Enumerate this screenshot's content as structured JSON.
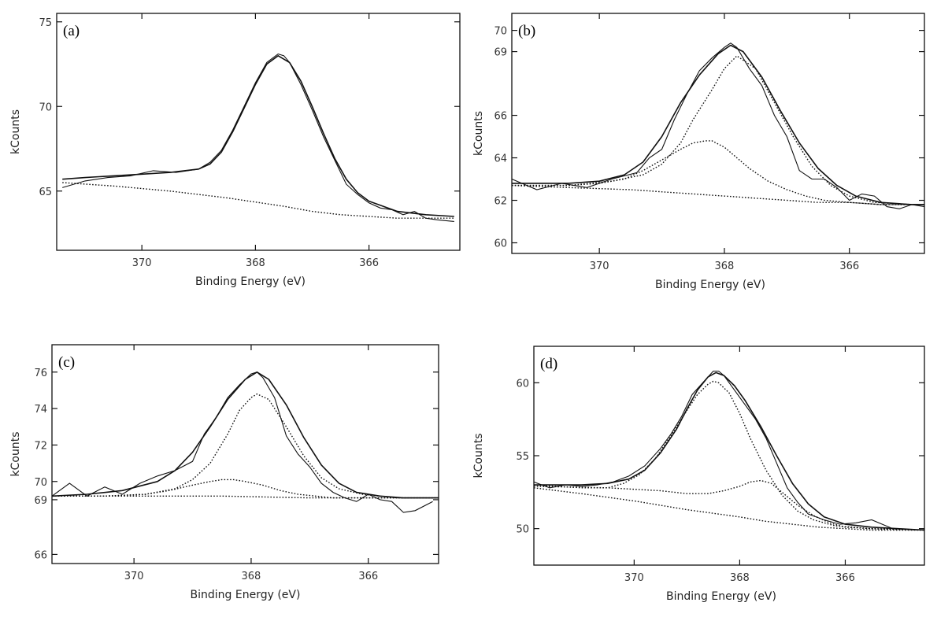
{
  "chart_data": [
    {
      "type": "line",
      "panel_label": "(a)",
      "xlabel": "Binding Energy (eV)",
      "ylabel": "kCounts",
      "x_reversed": true,
      "xlim": [
        371.5,
        364.4
      ],
      "ylim": [
        61.5,
        75.5
      ],
      "xticks": [
        370,
        368,
        366
      ],
      "xtick_labels": [
        "370",
        "368",
        "366"
      ],
      "yticks": [
        65,
        70,
        75
      ],
      "ytick_labels": [
        "65",
        "70",
        "75"
      ],
      "raw": {
        "x": [
          371.4,
          371.0,
          370.6,
          370.2,
          369.8,
          369.4,
          369.0,
          368.8,
          368.6,
          368.4,
          368.2,
          368.0,
          367.8,
          367.6,
          367.5,
          367.4,
          367.2,
          367.0,
          366.8,
          366.6,
          366.4,
          366.2,
          366.0,
          365.8,
          365.6,
          365.4,
          365.2,
          365.0,
          364.8,
          364.5
        ],
        "y": [
          65.2,
          65.6,
          65.8,
          65.9,
          66.2,
          66.1,
          66.3,
          66.7,
          67.4,
          68.6,
          70.0,
          71.4,
          72.6,
          73.1,
          73.0,
          72.6,
          71.3,
          69.8,
          68.2,
          66.8,
          65.4,
          64.8,
          64.3,
          64.0,
          63.9,
          63.6,
          63.8,
          63.4,
          63.3,
          63.2
        ]
      },
      "series": [
        {
          "style": "solid",
          "x": [
            371.4,
            371.0,
            370.5,
            370.0,
            369.5,
            369.0,
            368.8,
            368.6,
            368.4,
            368.2,
            368.0,
            367.8,
            367.6,
            367.4,
            367.2,
            367.0,
            366.8,
            366.6,
            366.4,
            366.2,
            366.0,
            365.5,
            365.0,
            364.5
          ],
          "y": [
            65.7,
            65.8,
            65.9,
            66.0,
            66.1,
            66.3,
            66.6,
            67.3,
            68.5,
            69.9,
            71.3,
            72.5,
            73.0,
            72.6,
            71.5,
            70.0,
            68.4,
            66.9,
            65.7,
            64.9,
            64.4,
            63.8,
            63.6,
            63.5
          ]
        },
        {
          "style": "dotted",
          "x": [
            371.4,
            370.5,
            369.5,
            368.5,
            367.5,
            367.0,
            366.5,
            366.0,
            365.5,
            365.0,
            364.5
          ],
          "y": [
            65.5,
            65.3,
            65.0,
            64.6,
            64.1,
            63.8,
            63.6,
            63.5,
            63.4,
            63.4,
            63.4
          ]
        }
      ]
    },
    {
      "type": "line",
      "panel_label": "(b)",
      "xlabel": "Binding Energy (eV)",
      "ylabel": "kCounts",
      "x_reversed": true,
      "xlim": [
        371.4,
        364.8
      ],
      "ylim": [
        59.5,
        70.8
      ],
      "xticks": [
        370,
        368,
        366
      ],
      "xtick_labels": [
        "370",
        "368",
        "366"
      ],
      "yticks": [
        60,
        62,
        64,
        66,
        69,
        70
      ],
      "ytick_labels": [
        "60",
        "62",
        "64",
        "66",
        "69",
        "70"
      ],
      "raw": {
        "x": [
          371.4,
          371.0,
          370.6,
          370.2,
          369.8,
          369.4,
          369.2,
          369.0,
          368.8,
          368.6,
          368.4,
          368.2,
          368.0,
          367.9,
          367.8,
          367.6,
          367.4,
          367.2,
          367.0,
          366.8,
          366.6,
          366.4,
          366.2,
          366.0,
          365.8,
          365.6,
          365.4,
          365.2,
          365.0,
          364.8
        ],
        "y": [
          63.0,
          62.5,
          62.8,
          62.6,
          63.0,
          63.3,
          64.0,
          64.4,
          65.8,
          67.0,
          68.1,
          68.7,
          69.2,
          69.4,
          69.2,
          68.2,
          67.4,
          66.0,
          65.0,
          63.4,
          63.0,
          63.0,
          62.6,
          62.0,
          62.3,
          62.2,
          61.7,
          61.6,
          61.8,
          61.7
        ]
      },
      "series": [
        {
          "style": "solid",
          "x": [
            371.4,
            370.5,
            370.0,
            369.6,
            369.3,
            369.0,
            368.7,
            368.4,
            368.1,
            367.9,
            367.7,
            367.4,
            367.1,
            366.8,
            366.5,
            366.2,
            365.9,
            365.5,
            365.0,
            364.8
          ],
          "y": [
            62.8,
            62.8,
            62.9,
            63.2,
            63.8,
            65.0,
            66.6,
            67.9,
            68.9,
            69.3,
            69.0,
            67.8,
            66.2,
            64.7,
            63.5,
            62.7,
            62.2,
            61.9,
            61.8,
            61.8
          ]
        },
        {
          "style": "dotted",
          "x": [
            371.4,
            370.5,
            369.8,
            369.3,
            369.0,
            368.7,
            368.5,
            368.2,
            368.0,
            367.8,
            367.5,
            367.2,
            366.9,
            366.6,
            366.3,
            366.0,
            365.6,
            365.0,
            364.8
          ],
          "y": [
            62.7,
            62.7,
            62.9,
            63.2,
            63.7,
            64.7,
            65.8,
            67.2,
            68.2,
            68.8,
            68.2,
            66.6,
            65.0,
            63.6,
            62.7,
            62.2,
            61.9,
            61.8,
            61.8
          ]
        },
        {
          "style": "dotted",
          "x": [
            371.4,
            370.5,
            370.0,
            369.6,
            369.3,
            369.0,
            368.7,
            368.5,
            368.3,
            368.2,
            368.0,
            367.8,
            367.6,
            367.3,
            367.0,
            366.7,
            366.4,
            366.0,
            365.5,
            364.8
          ],
          "y": [
            62.7,
            62.7,
            62.8,
            63.0,
            63.4,
            63.9,
            64.4,
            64.7,
            64.8,
            64.8,
            64.5,
            64.0,
            63.5,
            62.9,
            62.5,
            62.2,
            62.0,
            61.9,
            61.8,
            61.8
          ]
        },
        {
          "style": "dotted",
          "x": [
            371.4,
            370.5,
            369.5,
            368.5,
            367.5,
            367.0,
            366.5,
            366.0,
            365.5,
            365.0,
            364.8
          ],
          "y": [
            62.7,
            62.6,
            62.5,
            62.3,
            62.1,
            62.0,
            61.9,
            61.9,
            61.8,
            61.8,
            61.8
          ]
        }
      ]
    },
    {
      "type": "line",
      "panel_label": "(c)",
      "xlabel": "Binding Energy (eV)",
      "ylabel": "kCounts",
      "x_reversed": true,
      "xlim": [
        371.4,
        364.8
      ],
      "ylim": [
        65.5,
        77.5
      ],
      "xticks": [
        370,
        368,
        366
      ],
      "xtick_labels": [
        "370",
        "368",
        "366"
      ],
      "yticks": [
        66,
        69,
        70,
        72,
        74,
        76
      ],
      "ytick_labels": [
        "66",
        "69",
        "70",
        "72",
        "74",
        "76"
      ],
      "raw": {
        "x": [
          371.4,
          371.1,
          370.8,
          370.5,
          370.2,
          369.9,
          369.6,
          369.3,
          369.0,
          368.8,
          368.6,
          368.4,
          368.2,
          368.0,
          367.9,
          367.8,
          367.6,
          367.4,
          367.2,
          367.0,
          366.8,
          366.6,
          366.4,
          366.2,
          366.0,
          365.8,
          365.6,
          365.4,
          365.2,
          364.9
        ],
        "y": [
          69.2,
          69.9,
          69.2,
          69.7,
          69.3,
          69.9,
          70.3,
          70.6,
          71.1,
          72.6,
          73.5,
          74.6,
          75.3,
          75.9,
          76.0,
          75.7,
          74.6,
          72.5,
          71.5,
          70.8,
          69.9,
          69.4,
          69.1,
          68.9,
          69.3,
          69.0,
          68.9,
          68.3,
          68.4,
          68.9
        ]
      },
      "series": [
        {
          "style": "solid",
          "x": [
            371.4,
            370.8,
            370.2,
            369.6,
            369.3,
            369.0,
            368.7,
            368.4,
            368.1,
            367.9,
            367.7,
            367.4,
            367.1,
            366.8,
            366.5,
            366.2,
            365.8,
            365.4,
            364.8
          ],
          "y": [
            69.2,
            69.3,
            69.5,
            70.0,
            70.6,
            71.6,
            73.0,
            74.5,
            75.6,
            76.0,
            75.6,
            74.2,
            72.4,
            70.9,
            69.9,
            69.4,
            69.2,
            69.1,
            69.1
          ]
        },
        {
          "style": "dotted",
          "x": [
            371.4,
            370.5,
            369.8,
            369.3,
            369.0,
            368.7,
            368.4,
            368.2,
            368.0,
            367.9,
            367.7,
            367.4,
            367.1,
            366.8,
            366.5,
            366.1,
            365.5,
            364.8
          ],
          "y": [
            69.2,
            69.2,
            69.3,
            69.6,
            70.1,
            71.0,
            72.6,
            73.9,
            74.6,
            74.8,
            74.5,
            73.0,
            71.4,
            70.2,
            69.6,
            69.3,
            69.1,
            69.1
          ]
        },
        {
          "style": "dotted",
          "x": [
            371.4,
            370.5,
            369.8,
            369.4,
            369.0,
            368.7,
            368.5,
            368.3,
            368.1,
            367.8,
            367.5,
            367.2,
            366.9,
            366.6,
            366.2,
            365.5,
            364.8
          ],
          "y": [
            69.2,
            69.2,
            69.3,
            69.5,
            69.8,
            70.0,
            70.1,
            70.1,
            70.0,
            69.8,
            69.5,
            69.3,
            69.2,
            69.1,
            69.1,
            69.1,
            69.1
          ]
        },
        {
          "style": "dotted",
          "x": [
            371.4,
            370.0,
            368.5,
            367.0,
            366.0,
            364.8
          ],
          "y": [
            69.2,
            69.2,
            69.2,
            69.1,
            69.1,
            69.1
          ]
        }
      ]
    },
    {
      "type": "line",
      "panel_label": "(d)",
      "xlabel": "Binding Energy (eV)",
      "ylabel": "kCounts",
      "x_reversed": true,
      "xlim": [
        371.9,
        364.5
      ],
      "ylim": [
        47.5,
        62.5
      ],
      "xticks": [
        370,
        368,
        366
      ],
      "xtick_labels": [
        "370",
        "368",
        "366"
      ],
      "yticks": [
        50,
        55,
        60
      ],
      "ytick_labels": [
        "50",
        "55",
        "60"
      ],
      "raw": {
        "x": [
          371.9,
          371.6,
          371.3,
          371.0,
          370.7,
          370.4,
          370.1,
          369.8,
          369.5,
          369.3,
          369.1,
          368.9,
          368.7,
          368.5,
          368.4,
          368.3,
          368.1,
          367.9,
          367.7,
          367.5,
          367.3,
          367.1,
          366.9,
          366.7,
          366.4,
          366.1,
          365.8,
          365.5,
          365.1,
          364.6
        ],
        "y": [
          53.2,
          52.8,
          53.0,
          52.9,
          53.0,
          53.2,
          53.6,
          54.3,
          55.5,
          56.5,
          57.7,
          59.2,
          60.0,
          60.8,
          60.8,
          60.5,
          59.5,
          58.5,
          57.5,
          56.2,
          54.5,
          52.8,
          51.8,
          51.0,
          50.6,
          50.3,
          50.4,
          50.6,
          50.0,
          49.9
        ]
      },
      "series": [
        {
          "style": "solid",
          "x": [
            371.9,
            371.0,
            370.5,
            370.1,
            369.8,
            369.5,
            369.2,
            369.0,
            368.8,
            368.6,
            368.45,
            368.3,
            368.1,
            367.9,
            367.6,
            367.3,
            367.0,
            366.7,
            366.4,
            366.0,
            365.5,
            365.0,
            364.5
          ],
          "y": [
            53.0,
            53.0,
            53.1,
            53.4,
            54.0,
            55.2,
            56.8,
            58.2,
            59.5,
            60.4,
            60.7,
            60.5,
            59.8,
            58.8,
            57.0,
            55.0,
            53.1,
            51.7,
            50.8,
            50.3,
            50.1,
            50.0,
            49.9
          ]
        },
        {
          "style": "dotted",
          "x": [
            371.9,
            371.0,
            370.5,
            370.2,
            369.9,
            369.6,
            369.3,
            369.0,
            368.8,
            368.6,
            368.5,
            368.4,
            368.2,
            368.0,
            367.8,
            367.5,
            367.2,
            366.9,
            366.6,
            366.2,
            365.5,
            364.5
          ],
          "y": [
            53.0,
            52.8,
            52.8,
            53.1,
            53.7,
            54.8,
            56.4,
            58.1,
            59.2,
            59.9,
            60.1,
            60.0,
            59.3,
            57.9,
            56.2,
            54.0,
            52.3,
            51.2,
            50.6,
            50.2,
            50.0,
            49.9
          ]
        },
        {
          "style": "dotted",
          "x": [
            371.9,
            370.5,
            369.5,
            369.0,
            368.6,
            368.3,
            368.0,
            367.8,
            367.6,
            367.4,
            367.2,
            366.9,
            366.6,
            366.3,
            366.0,
            365.5,
            364.5
          ],
          "y": [
            52.9,
            52.8,
            52.6,
            52.4,
            52.4,
            52.6,
            52.9,
            53.2,
            53.3,
            53.1,
            52.5,
            51.6,
            50.9,
            50.4,
            50.1,
            50.0,
            49.9
          ]
        },
        {
          "style": "dotted",
          "x": [
            371.9,
            371.0,
            370.0,
            369.0,
            368.0,
            367.5,
            367.0,
            366.5,
            366.0,
            365.5,
            364.5
          ],
          "y": [
            52.8,
            52.4,
            51.9,
            51.3,
            50.8,
            50.5,
            50.3,
            50.1,
            50.0,
            49.9,
            49.9
          ]
        }
      ]
    }
  ]
}
